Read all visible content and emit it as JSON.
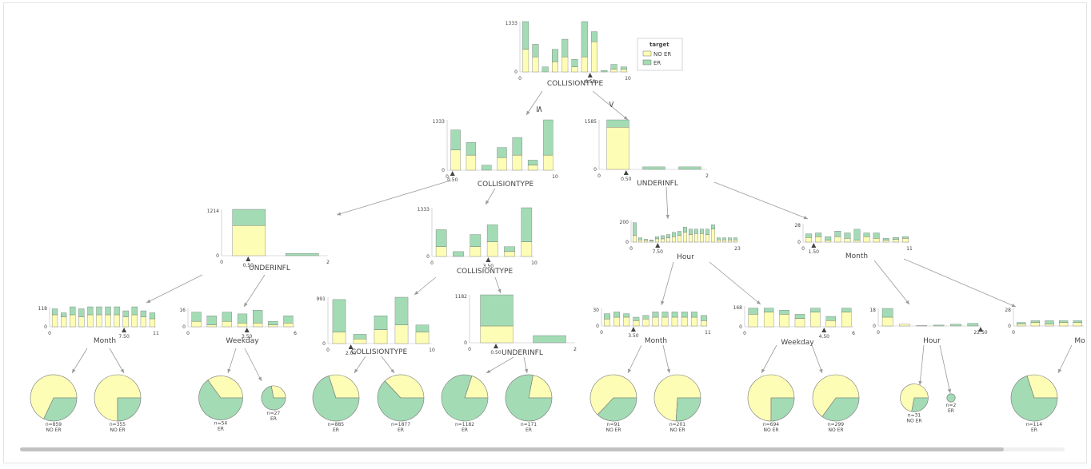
{
  "colors": {
    "no_er": "#fdfdb6",
    "er": "#a3dbb5",
    "bar_stroke": "#555555",
    "split_marker": "#444444",
    "edge": "#9a9a9a"
  },
  "legend": {
    "title": "target",
    "items": [
      {
        "label": "NO ER",
        "color": "#fdfdb6"
      },
      {
        "label": "ER",
        "color": "#a3dbb5"
      }
    ]
  },
  "edge_labels": {
    "left": "≤",
    "right": ">"
  },
  "nodes": [
    {
      "id": "root",
      "feature": "COLLISIONTYPE",
      "ymax_label": "1333",
      "ymin_label": "0",
      "xmin_label": "0",
      "xmax_label": "10",
      "split_label": "6.50",
      "bars": [
        {
          "no": 0.45,
          "er": 0.55
        },
        {
          "no": 0.3,
          "er": 0.25
        },
        {
          "no": 0,
          "er": 0.1
        },
        {
          "no": 0.2,
          "er": 0.25
        },
        {
          "no": 0.3,
          "er": 0.35
        },
        {
          "no": 0.1,
          "er": 0.15
        },
        {
          "no": 0.3,
          "er": 0.7
        },
        {
          "no": 0.6,
          "er": 0.2
        },
        {
          "no": 0,
          "er": 0.03
        },
        {
          "no": 0.05,
          "er": 0.1
        },
        {
          "no": 0.05,
          "er": 0.05
        }
      ]
    },
    {
      "id": "n1",
      "feature": "COLLISIONTYPE",
      "ymax_label": "1333",
      "ymin_label": "0",
      "xmin_label": "0",
      "xmax_label": "10",
      "split_label": "0.50",
      "bars": [
        {
          "no": 0.4,
          "er": 0.4
        },
        {
          "no": 0.3,
          "er": 0.25
        },
        {
          "no": 0,
          "er": 0.1
        },
        {
          "no": 0.25,
          "er": 0.2
        },
        {
          "no": 0.3,
          "er": 0.35
        },
        {
          "no": 0.1,
          "er": 0.1
        },
        {
          "no": 0.3,
          "er": 0.7
        }
      ]
    },
    {
      "id": "n2",
      "feature": "UNDERINFL",
      "ymax_label": "1585",
      "ymin_label": "0",
      "xmin_label": "0",
      "xmax_label": "2",
      "split_label": "0.50",
      "bars": [
        {
          "no": 0.85,
          "er": 0.15
        },
        {
          "no": 0,
          "er": 0.05
        },
        {
          "no": 0,
          "er": 0.05
        }
      ]
    },
    {
      "id": "n3",
      "feature": "UNDERINFL",
      "ymax_label": "1214",
      "ymin_label": "0",
      "xmin_label": "0",
      "xmax_label": "2",
      "split_label": "0.50",
      "bars": [
        {
          "no": 0.65,
          "er": 0.35
        },
        {
          "no": 0,
          "er": 0.05
        }
      ]
    },
    {
      "id": "n4",
      "feature": "COLLISIONTYPE",
      "ymax_label": "1333",
      "ymin_label": "0",
      "xmin_label": "0",
      "xmax_label": "10",
      "split_label": "3.50",
      "bars": [
        {
          "no": 0.2,
          "er": 0.35
        },
        {
          "no": 0,
          "er": 0.1
        },
        {
          "no": 0.2,
          "er": 0.25
        },
        {
          "no": 0.3,
          "er": 0.35
        },
        {
          "no": 0.1,
          "er": 0.1
        },
        {
          "no": 0.3,
          "er": 0.7
        }
      ]
    },
    {
      "id": "n5",
      "feature": "Hour",
      "ymax_label": "200",
      "ymin_label": "0",
      "xmin_label": "0",
      "xmax_label": "23",
      "split_label": "7.50",
      "bars": [
        {
          "no": 0.3,
          "er": 0.6
        },
        {
          "no": 0.1,
          "er": 0.1
        },
        {
          "no": 0.08,
          "er": 0.05
        },
        {
          "no": 0.05,
          "er": 0.05
        },
        {
          "no": 0.15,
          "er": 0.1
        },
        {
          "no": 0.15,
          "er": 0.15
        },
        {
          "no": 0.2,
          "er": 0.15
        },
        {
          "no": 0.25,
          "er": 0.2
        },
        {
          "no": 0.3,
          "er": 0.2
        },
        {
          "no": 0.45,
          "er": 0.25
        },
        {
          "no": 0.35,
          "er": 0.25
        },
        {
          "no": 0.4,
          "er": 0.2
        },
        {
          "no": 0.4,
          "er": 0.2
        },
        {
          "no": 0.35,
          "er": 0.25
        },
        {
          "no": 0.6,
          "er": 0.2
        },
        {
          "no": 0.1,
          "er": 0.1
        },
        {
          "no": 0.1,
          "er": 0.1
        },
        {
          "no": 0.1,
          "er": 0.1
        },
        {
          "no": 0.1,
          "er": 0.1
        }
      ]
    },
    {
      "id": "n6",
      "feature": "Month",
      "ymax_label": "28",
      "ymin_label": "0",
      "xmin_label": "0",
      "xmax_label": "11",
      "split_label": "1.50",
      "bars": [
        {
          "no": 0.25,
          "er": 0.2
        },
        {
          "no": 0.3,
          "er": 0.2
        },
        {
          "no": 0.1,
          "er": 0.2
        },
        {
          "no": 0.3,
          "er": 0.3
        },
        {
          "no": 0.2,
          "er": 0.3
        },
        {
          "no": 0.1,
          "er": 0.6
        },
        {
          "no": 0.3,
          "er": 0.2
        },
        {
          "no": 0.2,
          "er": 0.3
        },
        {
          "no": 0.1,
          "er": 0.1
        },
        {
          "no": 0.15,
          "er": 0.1
        },
        {
          "no": 0.2,
          "er": 0.1
        }
      ]
    },
    {
      "id": "n7",
      "feature": "Month",
      "ymax_label": "118",
      "ymin_label": "0",
      "xmin_label": "0",
      "xmax_label": "11",
      "split_label": "7.50",
      "bars": [
        {
          "no": 0.6,
          "er": 0.3
        },
        {
          "no": 0.5,
          "er": 0.2
        },
        {
          "no": 0.6,
          "er": 0.4
        },
        {
          "no": 0.5,
          "er": 0.4
        },
        {
          "no": 0.6,
          "er": 0.4
        },
        {
          "no": 0.6,
          "er": 0.4
        },
        {
          "no": 0.6,
          "er": 0.4
        },
        {
          "no": 0.6,
          "er": 0.4
        },
        {
          "no": 0.5,
          "er": 0.3
        },
        {
          "no": 0.6,
          "er": 0.4
        },
        {
          "no": 0.5,
          "er": 0.3
        },
        {
          "no": 0.4,
          "er": 0.3
        }
      ]
    },
    {
      "id": "n8",
      "feature": "Weekday",
      "ymax_label": "16",
      "ymin_label": "0",
      "xmin_label": "0",
      "xmax_label": "6",
      "split_label": "3.50",
      "bars": [
        {
          "no": 0.3,
          "er": 0.5
        },
        {
          "no": 0.1,
          "er": 0.5
        },
        {
          "no": 0.3,
          "er": 0.5
        },
        {
          "no": 0.2,
          "er": 0.5
        },
        {
          "no": 0.2,
          "er": 0.7
        },
        {
          "no": 0.1,
          "er": 0.2
        },
        {
          "no": 0.2,
          "er": 0.4
        }
      ]
    },
    {
      "id": "n9",
      "feature": "COLLISIONTYPE",
      "ymax_label": "991",
      "ymin_label": "0",
      "xmin_label": "0",
      "xmax_label": "10",
      "split_label": "2.00",
      "bars": [
        {
          "no": 0.25,
          "er": 0.7
        },
        {
          "no": 0.1,
          "er": 0.1
        },
        {
          "no": 0.3,
          "er": 0.3
        },
        {
          "no": 0.4,
          "er": 0.6
        },
        {
          "no": 0.25,
          "er": 0.15
        }
      ]
    },
    {
      "id": "n10",
      "feature": "UNDERINFL",
      "ymax_label": "1182",
      "ymin_label": "0",
      "xmin_label": "0",
      "xmax_label": "2",
      "split_label": "0.50",
      "bars": [
        {
          "no": 0.35,
          "er": 0.65
        },
        {
          "no": 0,
          "er": 0.15
        }
      ]
    },
    {
      "id": "n11",
      "feature": "Month",
      "ymax_label": "30",
      "ymin_label": "0",
      "xmin_label": "0",
      "xmax_label": "11",
      "split_label": "3.50",
      "bars": [
        {
          "no": 0.4,
          "er": 0.3
        },
        {
          "no": 0.5,
          "er": 0.3
        },
        {
          "no": 0.5,
          "er": 0.2
        },
        {
          "no": 0.3,
          "er": 0.2
        },
        {
          "no": 0.4,
          "er": 0.2
        },
        {
          "no": 0.5,
          "er": 0.3
        },
        {
          "no": 0.5,
          "er": 0.3
        },
        {
          "no": 0.5,
          "er": 0.3
        },
        {
          "no": 0.5,
          "er": 0.3
        },
        {
          "no": 0.5,
          "er": 0.3
        },
        {
          "no": 0.3,
          "er": 0.3
        }
      ]
    },
    {
      "id": "n12",
      "feature": "Weekday",
      "ymax_label": "168",
      "ymin_label": "0",
      "xmin_label": "0",
      "xmax_label": "6",
      "split_label": "4.50",
      "bars": [
        {
          "no": 0.6,
          "er": 0.3
        },
        {
          "no": 0.7,
          "er": 0.2
        },
        {
          "no": 0.6,
          "er": 0.2
        },
        {
          "no": 0.4,
          "er": 0.2
        },
        {
          "no": 0.7,
          "er": 0.2
        },
        {
          "no": 0.3,
          "er": 0.2
        },
        {
          "no": 0.7,
          "er": 0.2
        }
      ]
    },
    {
      "id": "n13",
      "feature": "Hour",
      "ymax_label": "18",
      "ymin_label": "0",
      "xmin_label": "0",
      "xmax_label": "22.50",
      "split_label": "",
      "bars": [
        {
          "no": 0.5,
          "er": 0.5
        },
        {
          "no": 0.1,
          "er": 0
        },
        {
          "no": 0,
          "er": 0.02
        },
        {
          "no": 0,
          "er": 0.05
        },
        {
          "no": 0,
          "er": 0.1
        },
        {
          "no": 0,
          "er": 0.15
        }
      ]
    },
    {
      "id": "n14",
      "feature": "Mo",
      "ymax_label": "28",
      "ymin_label": "0",
      "xmin_label": "0",
      "xmax_label": "",
      "split_label": "",
      "bars": [
        {
          "no": 0.1,
          "er": 0.1
        },
        {
          "no": 0.2,
          "er": 0.1
        },
        {
          "no": 0.1,
          "er": 0.2
        },
        {
          "no": 0.2,
          "er": 0.1
        },
        {
          "no": 0.2,
          "er": 0.1
        }
      ]
    }
  ],
  "leaves": [
    {
      "id": "l1",
      "n_label": "n=859",
      "class_label": "NO ER",
      "no_fraction": 0.68,
      "size": 1.0
    },
    {
      "id": "l2",
      "n_label": "n=355",
      "class_label": "NO ER",
      "no_fraction": 0.75,
      "size": 1.0
    },
    {
      "id": "l3",
      "n_label": "n=54",
      "class_label": "ER",
      "no_fraction": 0.35,
      "size": 0.95
    },
    {
      "id": "l4",
      "n_label": "n=27",
      "class_label": "ER",
      "no_fraction": 0.28,
      "size": 0.52
    },
    {
      "id": "l5",
      "n_label": "n=885",
      "class_label": "ER",
      "no_fraction": 0.3,
      "size": 1.0
    },
    {
      "id": "l6",
      "n_label": "n=1877",
      "class_label": "ER",
      "no_fraction": 0.37,
      "size": 1.0
    },
    {
      "id": "l7",
      "n_label": "n=1182",
      "class_label": "ER",
      "no_fraction": 0.2,
      "size": 1.0
    },
    {
      "id": "l8",
      "n_label": "n=171",
      "class_label": "ER",
      "no_fraction": 0.22,
      "size": 1.0
    },
    {
      "id": "l9",
      "n_label": "n=91",
      "class_label": "NO ER",
      "no_fraction": 0.63,
      "size": 1.0
    },
    {
      "id": "l10",
      "n_label": "n=201",
      "class_label": "NO ER",
      "no_fraction": 0.74,
      "size": 1.0
    },
    {
      "id": "l11",
      "n_label": "n=694",
      "class_label": "NO ER",
      "no_fraction": 0.75,
      "size": 1.0
    },
    {
      "id": "l12",
      "n_label": "n=299",
      "class_label": "NO ER",
      "no_fraction": 0.65,
      "size": 1.0
    },
    {
      "id": "l13",
      "n_label": "n=31",
      "class_label": "NO ER",
      "no_fraction": 0.72,
      "size": 0.6
    },
    {
      "id": "l14",
      "n_label": "n=2",
      "class_label": "ER",
      "no_fraction": 0.0,
      "size": 0.18
    },
    {
      "id": "l15",
      "n_label": "n=114",
      "class_label": "ER",
      "no_fraction": 0.3,
      "size": 1.0
    }
  ]
}
